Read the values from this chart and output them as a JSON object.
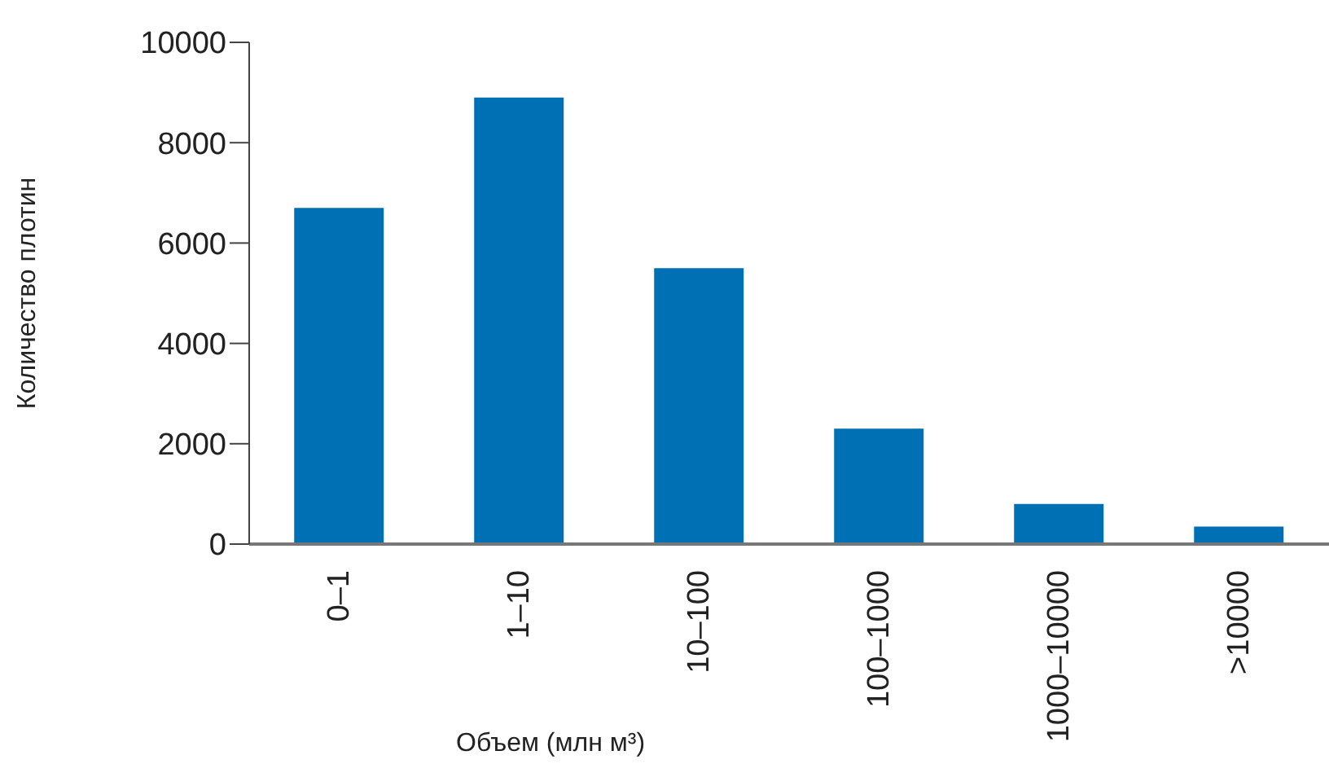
{
  "chart_data": {
    "type": "bar",
    "xlabel": "Объем (млн м³)",
    "ylabel": "Количество плотин",
    "categories": [
      "0–1",
      "1–10",
      "10–100",
      "100–1000",
      "1000–10000",
      ">10000"
    ],
    "values": [
      6700,
      8900,
      5500,
      2300,
      800,
      350
    ],
    "color": "#0070b5",
    "ylim": [
      0,
      10000
    ],
    "yticks": [
      0,
      2000,
      4000,
      6000,
      8000,
      10000
    ]
  }
}
